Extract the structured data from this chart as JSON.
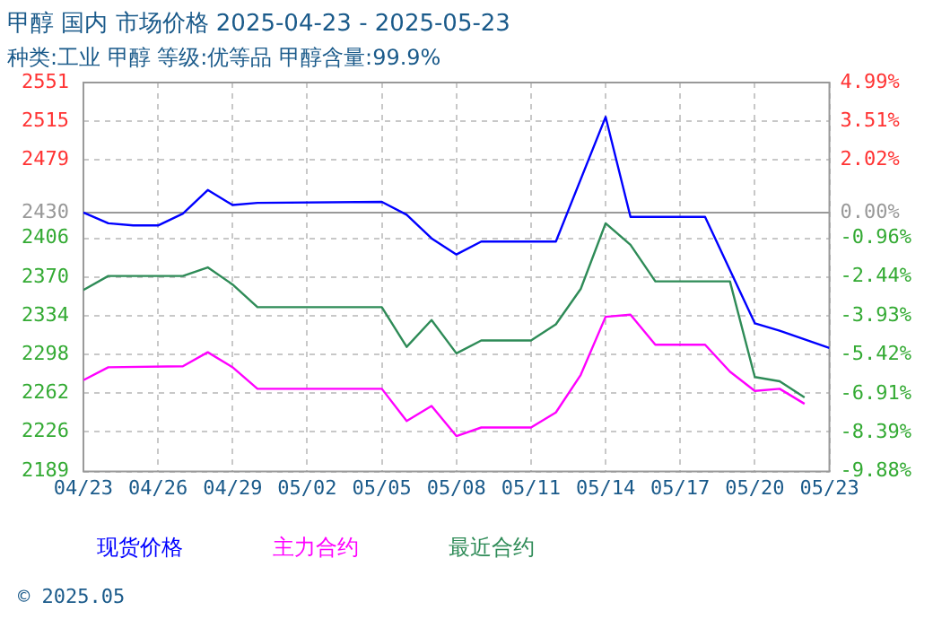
{
  "chart_data": {
    "type": "line",
    "title": "甲醇 国内 市场价格 2025-04-23 - 2025-05-23",
    "subtitle": "种类:工业 甲醇 等级:优等品 甲醇含量:99.9%",
    "xlim": [
      "2025-04-23",
      "2025-05-23"
    ],
    "xticks": [
      {
        "value": "2025-04-23",
        "label": "04/23"
      },
      {
        "value": "2025-04-26",
        "label": "04/26"
      },
      {
        "value": "2025-04-29",
        "label": "04/29"
      },
      {
        "value": "2025-05-02",
        "label": "05/02"
      },
      {
        "value": "2025-05-05",
        "label": "05/05"
      },
      {
        "value": "2025-05-08",
        "label": "05/08"
      },
      {
        "value": "2025-05-11",
        "label": "05/11"
      },
      {
        "value": "2025-05-14",
        "label": "05/14"
      },
      {
        "value": "2025-05-17",
        "label": "05/17"
      },
      {
        "value": "2025-05-20",
        "label": "05/20"
      },
      {
        "value": "2025-05-23",
        "label": "05/23"
      }
    ],
    "ylim": [
      2189,
      2551
    ],
    "yticks": [
      2189,
      2226,
      2262,
      2298,
      2334,
      2370,
      2406,
      2430,
      2479,
      2515,
      2551
    ],
    "y2lim": [
      -9.88,
      4.99
    ],
    "y2ticks": [
      {
        "value": -9.88,
        "label": "-9.88%"
      },
      {
        "value": -8.39,
        "label": "-8.39%"
      },
      {
        "value": -6.91,
        "label": "-6.91%"
      },
      {
        "value": -5.42,
        "label": "-5.42%"
      },
      {
        "value": -3.93,
        "label": "-3.93%"
      },
      {
        "value": -2.44,
        "label": "-2.44%"
      },
      {
        "value": -0.96,
        "label": "-0.96%"
      },
      {
        "value": 0,
        "label": "0.00%"
      },
      {
        "value": 2.02,
        "label": "2.02%"
      },
      {
        "value": 3.51,
        "label": "3.51%"
      },
      {
        "value": 4.99,
        "label": "4.99%"
      }
    ],
    "ref_lines": [
      {
        "axis": "y",
        "value": 2430,
        "color": "#999999"
      }
    ],
    "grid": true,
    "legend": "bottom",
    "marker": "none",
    "line_style": "solid",
    "annotations": [
      "© 2025.05"
    ],
    "series": [
      {
        "name": "现货价格",
        "color": "#0000ff",
        "x": [
          "2025-04-23",
          "2025-04-24",
          "2025-04-25",
          "2025-04-26",
          "2025-04-27",
          "2025-04-28",
          "2025-04-29",
          "2025-04-30",
          "2025-05-05",
          "2025-05-06",
          "2025-05-07",
          "2025-05-08",
          "2025-05-09",
          "2025-05-12",
          "2025-05-14",
          "2025-05-15",
          "2025-05-18",
          "2025-05-20",
          "2025-05-21",
          "2025-05-23"
        ],
        "values": [
          2430,
          2420,
          2418,
          2418,
          2429,
          2451,
          2437,
          2439,
          2440,
          2428,
          2406,
          2391,
          2403,
          2403,
          2519,
          2426,
          2426,
          2327,
          2320,
          2304
        ]
      },
      {
        "name": "主力合约",
        "color": "#ff00ff",
        "x": [
          "2025-04-23",
          "2025-04-24",
          "2025-04-27",
          "2025-04-28",
          "2025-04-29",
          "2025-04-30",
          "2025-05-05",
          "2025-05-06",
          "2025-05-07",
          "2025-05-08",
          "2025-05-09",
          "2025-05-11",
          "2025-05-12",
          "2025-05-13",
          "2025-05-14",
          "2025-05-15",
          "2025-05-16",
          "2025-05-18",
          "2025-05-19",
          "2025-05-20",
          "2025-05-21",
          "2025-05-22"
        ],
        "values": [
          2274,
          2286,
          2287,
          2300,
          2286,
          2266,
          2266,
          2236,
          2250,
          2222,
          2230,
          2230,
          2244,
          2279,
          2333,
          2335,
          2307,
          2307,
          2282,
          2264,
          2266,
          2252
        ]
      },
      {
        "name": "最近合约",
        "color": "#2e8b57",
        "x": [
          "2025-04-23",
          "2025-04-24",
          "2025-04-27",
          "2025-04-28",
          "2025-04-29",
          "2025-04-30",
          "2025-05-05",
          "2025-05-06",
          "2025-05-07",
          "2025-05-08",
          "2025-05-09",
          "2025-05-11",
          "2025-05-12",
          "2025-05-13",
          "2025-05-14",
          "2025-05-15",
          "2025-05-16",
          "2025-05-19",
          "2025-05-20",
          "2025-05-21",
          "2025-05-22"
        ],
        "values": [
          2358,
          2371,
          2371,
          2379,
          2363,
          2342,
          2342,
          2305,
          2330,
          2299,
          2311,
          2311,
          2326,
          2359,
          2420,
          2400,
          2366,
          2366,
          2277,
          2273,
          2258
        ]
      }
    ]
  }
}
